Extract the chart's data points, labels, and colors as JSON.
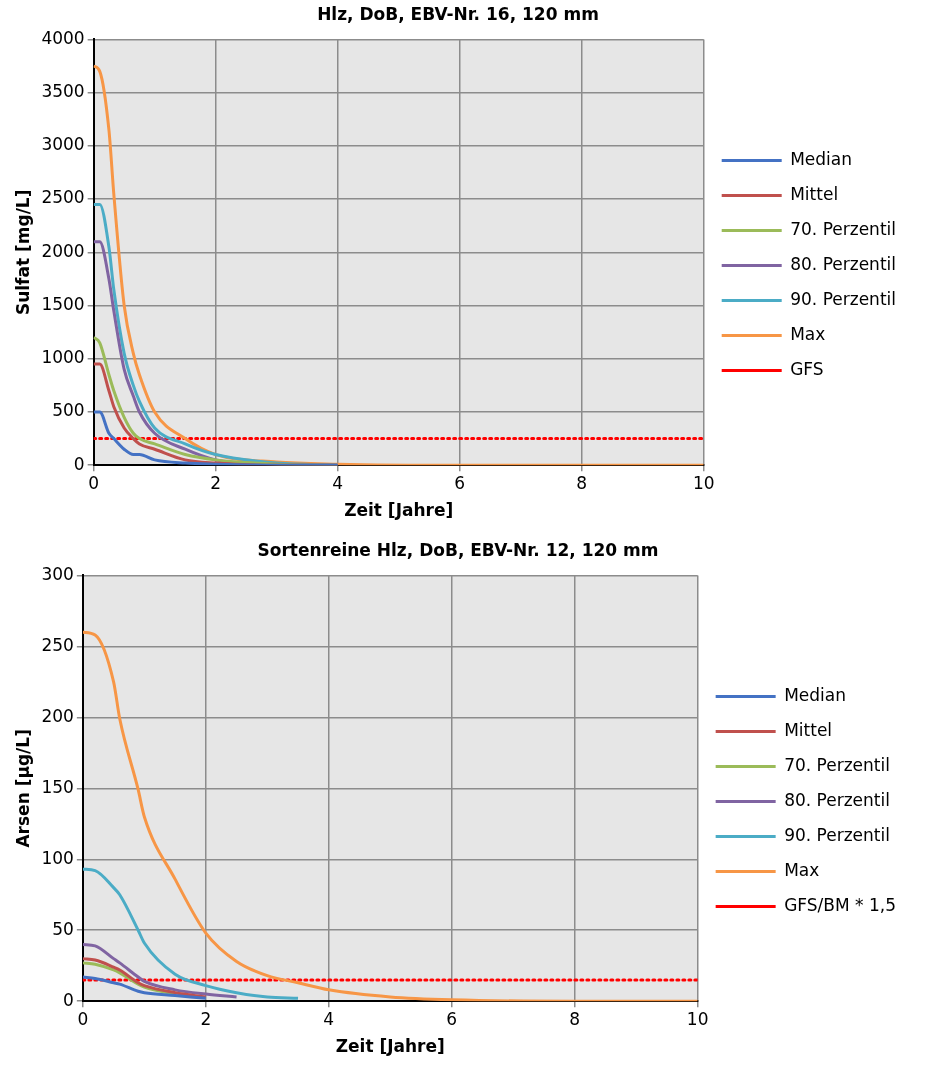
{
  "chart_data": [
    {
      "type": "line",
      "title": "Hlz, DoB, EBV-Nr. 16, 120 mm",
      "xlabel": "Zeit [Jahre]",
      "ylabel": "Sulfat [mg/L]",
      "x": [
        0,
        0.1,
        0.25,
        0.33,
        0.5,
        0.65,
        0.75,
        1,
        1.5,
        2,
        3,
        4,
        6,
        8,
        10
      ],
      "series": [
        {
          "name": "Median",
          "color": "#4472c4",
          "values": [
            500,
            500,
            300,
            250,
            150,
            100,
            100,
            50,
            20,
            10,
            0,
            0,
            null,
            null,
            null
          ]
        },
        {
          "name": "Mittel",
          "color": "#c0504d",
          "values": [
            950,
            950,
            700,
            550,
            350,
            250,
            200,
            150,
            50,
            20,
            0,
            0,
            null,
            null,
            null
          ]
        },
        {
          "name": "70. Perzentil",
          "color": "#9bbb59",
          "values": [
            1200,
            1150,
            850,
            700,
            450,
            300,
            250,
            200,
            100,
            50,
            10,
            0,
            null,
            null,
            null
          ]
        },
        {
          "name": "80. Perzentil",
          "color": "#8064a2",
          "values": [
            2100,
            2100,
            1750,
            1450,
            900,
            650,
            500,
            300,
            150,
            50,
            10,
            0,
            null,
            null,
            null
          ]
        },
        {
          "name": "90. Perzentil",
          "color": "#4bacc6",
          "values": [
            2450,
            2450,
            2050,
            1650,
            1050,
            750,
            600,
            350,
            200,
            100,
            20,
            0,
            null,
            null,
            null
          ]
        },
        {
          "name": "Max",
          "color": "#f79646",
          "values": [
            3750,
            3700,
            3150,
            2550,
            1500,
            1050,
            850,
            500,
            250,
            100,
            30,
            10,
            0,
            0,
            0
          ]
        }
      ],
      "ref_lines": [
        {
          "axis": "y",
          "value": 250,
          "label": "GFS",
          "color": "#ff0000",
          "line_style": "dotted"
        }
      ],
      "xlim": [
        0,
        10
      ],
      "xticks": [
        0,
        2,
        4,
        6,
        8,
        10
      ],
      "ylim": [
        0,
        4000
      ],
      "yticks": [
        0,
        500,
        1000,
        1500,
        2000,
        2500,
        3000,
        3500,
        4000
      ],
      "grid": true,
      "legend": "right",
      "marker": "none",
      "line_style": "solid"
    },
    {
      "type": "line",
      "title": "Sortenreine Hlz, DoB, EBV-Nr. 12, 120 mm",
      "xlabel": "Zeit [Jahre]",
      "ylabel": "Arsen [µg/L]",
      "x": [
        0,
        0.2,
        0.5,
        0.6,
        0.9,
        1,
        1.5,
        2,
        2.5,
        3,
        3.5,
        4,
        5,
        6,
        8,
        10
      ],
      "series": [
        {
          "name": "Median",
          "color": "#4472c4",
          "values": [
            17,
            16,
            13,
            12,
            7,
            6,
            4,
            2,
            null,
            null,
            null,
            null,
            null,
            null,
            null,
            null
          ]
        },
        {
          "name": "Mittel",
          "color": "#c0504d",
          "values": [
            30,
            29,
            24,
            22,
            13,
            11,
            6,
            3,
            null,
            null,
            null,
            null,
            null,
            null,
            null,
            null
          ]
        },
        {
          "name": "70. Perzentil",
          "color": "#9bbb59",
          "values": [
            27,
            26,
            22,
            20,
            12,
            10,
            5,
            null,
            null,
            null,
            null,
            null,
            null,
            null,
            null,
            null
          ]
        },
        {
          "name": "80. Perzentil",
          "color": "#8064a2",
          "values": [
            40,
            39,
            30,
            27,
            17,
            14,
            8,
            5,
            3,
            null,
            null,
            null,
            null,
            null,
            null,
            null
          ]
        },
        {
          "name": "90. Perzentil",
          "color": "#4bacc6",
          "values": [
            93,
            92,
            80,
            75,
            50,
            41,
            19,
            11,
            6,
            3,
            2,
            null,
            null,
            null,
            null,
            null
          ]
        },
        {
          "name": "Max",
          "color": "#f79646",
          "values": [
            260,
            258,
            225,
            199,
            149,
            130,
            86,
            48,
            28,
            18,
            13,
            8,
            3,
            1,
            0,
            0
          ]
        }
      ],
      "ref_lines": [
        {
          "axis": "y",
          "value": 15,
          "label": "GFS/BM * 1,5",
          "color": "#ff0000",
          "line_style": "dotted"
        }
      ],
      "xlim": [
        0,
        10
      ],
      "xticks": [
        0,
        2,
        4,
        6,
        8,
        10
      ],
      "ylim": [
        0,
        300
      ],
      "yticks": [
        0,
        50,
        100,
        150,
        200,
        250,
        300
      ],
      "grid": true,
      "legend": "right",
      "marker": "none",
      "line_style": "solid"
    }
  ]
}
